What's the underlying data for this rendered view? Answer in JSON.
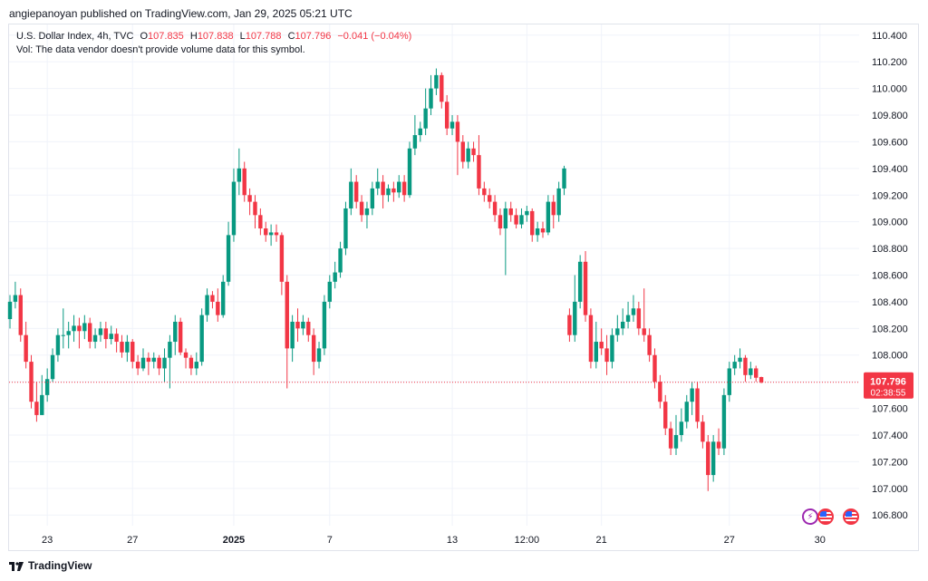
{
  "header": {
    "published_line": "angiepanoyan published on TradingView.com, Jan 29, 2025 05:21 UTC"
  },
  "legend": {
    "symbol": "U.S. Dollar Index, 4h, TVC",
    "open_label": "O",
    "open_value": "107.835",
    "high_label": "H",
    "high_value": "107.838",
    "low_label": "L",
    "low_value": "107.788",
    "close_label": "C",
    "close_value": "107.796",
    "change": "−0.041 (−0.04%)",
    "volume_note": "Vol: The data vendor doesn't provide volume data for this symbol."
  },
  "price_tag": {
    "price": "107.796",
    "countdown": "02:38:55"
  },
  "footer": {
    "brand": "TradingView"
  },
  "icons": [
    "flash-event-icon",
    "us-flag-event-icon",
    "us-flag-event-icon"
  ],
  "colors": {
    "up": "#089981",
    "down": "#f23645",
    "grid": "#f0f3fa",
    "axis_text": "#131722"
  },
  "chart_data": {
    "type": "candlestick",
    "title": "U.S. Dollar Index, 4h, TVC",
    "xlabel": "",
    "ylabel": "",
    "y_ticks": [
      "106.800",
      "107.000",
      "107.200",
      "107.400",
      "107.600",
      "107.800",
      "108.000",
      "108.200",
      "108.400",
      "108.600",
      "108.800",
      "109.000",
      "109.200",
      "109.400",
      "109.600",
      "109.800",
      "110.000",
      "110.200",
      "110.400"
    ],
    "x_ticks": [
      {
        "label": "23",
        "index": 7,
        "bold": false
      },
      {
        "label": "27",
        "index": 23,
        "bold": false
      },
      {
        "label": "2025",
        "index": 42,
        "bold": true
      },
      {
        "label": "7",
        "index": 60,
        "bold": false
      },
      {
        "label": "13",
        "index": 83,
        "bold": false
      },
      {
        "label": "12:00",
        "index": 97,
        "bold": false
      },
      {
        "label": "21",
        "index": 111,
        "bold": false
      },
      {
        "label": "27",
        "index": 135,
        "bold": false
      },
      {
        "label": "30",
        "index": 152,
        "bold": false
      }
    ],
    "ylim": [
      106.72,
      110.48
    ],
    "last_price": 107.796,
    "grid": true,
    "candles": [
      [
        108.27,
        108.4,
        108.45,
        108.2
      ],
      [
        108.4,
        108.45,
        108.55,
        108.35
      ],
      [
        108.45,
        108.15,
        108.5,
        108.1
      ],
      [
        108.15,
        107.95,
        108.25,
        107.9
      ],
      [
        107.95,
        107.65,
        108.0,
        107.6
      ],
      [
        107.65,
        107.55,
        107.8,
        107.5
      ],
      [
        107.55,
        107.7,
        107.85,
        107.55
      ],
      [
        107.7,
        107.82,
        107.9,
        107.65
      ],
      [
        107.82,
        108.0,
        108.05,
        107.8
      ],
      [
        108.0,
        108.15,
        108.2,
        107.95
      ],
      [
        108.15,
        108.15,
        108.35,
        108.05
      ],
      [
        108.15,
        108.18,
        108.25,
        108.05
      ],
      [
        108.18,
        108.22,
        108.3,
        108.1
      ],
      [
        108.22,
        108.18,
        108.28,
        108.05
      ],
      [
        108.18,
        108.24,
        108.3,
        108.12
      ],
      [
        108.24,
        108.1,
        108.28,
        108.05
      ],
      [
        108.1,
        108.15,
        108.2,
        108.05
      ],
      [
        108.15,
        108.2,
        108.25,
        108.1
      ],
      [
        108.2,
        108.12,
        108.25,
        108.05
      ],
      [
        108.12,
        108.16,
        108.22,
        108.08
      ],
      [
        108.16,
        108.1,
        108.2,
        108.02
      ],
      [
        108.1,
        108.02,
        108.15,
        107.98
      ],
      [
        108.02,
        108.1,
        108.15,
        107.95
      ],
      [
        108.1,
        107.95,
        108.12,
        107.9
      ],
      [
        107.95,
        107.9,
        108.0,
        107.85
      ],
      [
        107.9,
        107.98,
        108.05,
        107.88
      ],
      [
        107.98,
        107.95,
        108.02,
        107.85
      ],
      [
        107.95,
        107.98,
        108.02,
        107.9
      ],
      [
        107.98,
        107.9,
        108.0,
        107.85
      ],
      [
        107.9,
        107.98,
        108.05,
        107.8
      ],
      [
        107.98,
        108.1,
        108.15,
        107.75
      ],
      [
        108.1,
        108.25,
        108.3,
        108.0
      ],
      [
        108.25,
        108.02,
        108.28,
        108.0
      ],
      [
        108.02,
        107.98,
        108.05,
        107.9
      ],
      [
        107.98,
        107.9,
        108.0,
        107.85
      ],
      [
        107.9,
        107.95,
        108.02,
        107.85
      ],
      [
        107.95,
        108.3,
        108.35,
        107.92
      ],
      [
        108.3,
        108.45,
        108.5,
        108.25
      ],
      [
        108.45,
        108.4,
        108.48,
        108.35
      ],
      [
        108.4,
        108.3,
        108.5,
        108.25
      ],
      [
        108.3,
        108.55,
        108.6,
        108.28
      ],
      [
        108.55,
        108.9,
        109.0,
        108.52
      ],
      [
        108.9,
        109.3,
        109.4,
        108.85
      ],
      [
        109.3,
        109.4,
        109.55,
        109.2
      ],
      [
        109.4,
        109.2,
        109.45,
        109.15
      ],
      [
        109.2,
        109.15,
        109.25,
        109.05
      ],
      [
        109.15,
        109.05,
        109.2,
        108.95
      ],
      [
        109.05,
        108.95,
        109.1,
        108.9
      ],
      [
        108.95,
        108.9,
        109.0,
        108.85
      ],
      [
        108.9,
        108.92,
        108.98,
        108.82
      ],
      [
        108.92,
        108.9,
        108.98,
        108.85
      ],
      [
        108.9,
        108.55,
        108.92,
        108.45
      ],
      [
        108.55,
        108.05,
        108.6,
        107.75
      ],
      [
        108.05,
        108.25,
        108.3,
        107.95
      ],
      [
        108.25,
        108.2,
        108.35,
        108.1
      ],
      [
        108.2,
        108.25,
        108.3,
        108.15
      ],
      [
        108.25,
        108.15,
        108.28,
        108.1
      ],
      [
        108.15,
        107.95,
        108.2,
        107.85
      ],
      [
        107.95,
        108.05,
        108.1,
        107.9
      ],
      [
        108.05,
        108.4,
        108.45,
        108.0
      ],
      [
        108.4,
        108.55,
        108.6,
        108.35
      ],
      [
        108.55,
        108.62,
        108.7,
        108.5
      ],
      [
        108.62,
        108.8,
        108.85,
        108.58
      ],
      [
        108.8,
        109.1,
        109.15,
        108.75
      ],
      [
        109.1,
        109.3,
        109.4,
        109.05
      ],
      [
        109.3,
        109.15,
        109.35,
        109.1
      ],
      [
        109.15,
        109.05,
        109.2,
        109.0
      ],
      [
        109.05,
        109.1,
        109.15,
        108.95
      ],
      [
        109.1,
        109.25,
        109.3,
        109.05
      ],
      [
        109.25,
        109.3,
        109.4,
        109.2
      ],
      [
        109.3,
        109.2,
        109.35,
        109.1
      ],
      [
        109.2,
        109.25,
        109.28,
        109.15
      ],
      [
        109.25,
        109.22,
        109.3,
        109.15
      ],
      [
        109.22,
        109.3,
        109.35,
        109.18
      ],
      [
        109.3,
        109.2,
        109.35,
        109.15
      ],
      [
        109.2,
        109.55,
        109.6,
        109.18
      ],
      [
        109.55,
        109.65,
        109.8,
        109.5
      ],
      [
        109.65,
        109.7,
        109.75,
        109.6
      ],
      [
        109.7,
        109.85,
        110.0,
        109.65
      ],
      [
        109.85,
        110.0,
        110.1,
        109.8
      ],
      [
        110.0,
        110.1,
        110.15,
        109.95
      ],
      [
        110.1,
        109.9,
        110.12,
        109.85
      ],
      [
        109.9,
        109.7,
        109.95,
        109.65
      ],
      [
        109.7,
        109.75,
        109.8,
        109.65
      ],
      [
        109.75,
        109.6,
        109.8,
        109.35
      ],
      [
        109.6,
        109.45,
        109.65,
        109.4
      ],
      [
        109.45,
        109.55,
        109.6,
        109.4
      ],
      [
        109.55,
        109.5,
        109.6,
        109.45
      ],
      [
        109.5,
        109.25,
        109.65,
        109.2
      ],
      [
        109.25,
        109.2,
        109.3,
        109.15
      ],
      [
        109.2,
        109.15,
        109.25,
        109.1
      ],
      [
        109.15,
        109.05,
        109.2,
        109.0
      ],
      [
        109.05,
        108.95,
        109.1,
        108.9
      ],
      [
        108.95,
        109.1,
        109.15,
        108.6
      ],
      [
        109.1,
        109.05,
        109.15,
        109.0
      ],
      [
        109.05,
        108.98,
        109.1,
        108.95
      ],
      [
        108.98,
        109.05,
        109.1,
        108.95
      ],
      [
        109.05,
        109.08,
        109.12,
        109.0
      ],
      [
        109.08,
        108.9,
        109.1,
        108.85
      ],
      [
        108.9,
        108.95,
        109.0,
        108.85
      ],
      [
        108.95,
        108.92,
        109.0,
        108.88
      ],
      [
        108.92,
        109.15,
        109.2,
        108.9
      ],
      [
        109.15,
        109.05,
        109.2,
        108.95
      ],
      [
        109.05,
        109.25,
        109.3,
        109.0
      ],
      [
        109.25,
        109.4,
        109.42,
        109.2
      ],
      [
        108.3,
        108.15,
        108.35,
        108.1
      ],
      [
        108.15,
        108.4,
        108.6,
        108.1
      ],
      [
        108.4,
        108.7,
        108.75,
        108.35
      ],
      [
        108.7,
        108.3,
        108.78,
        108.25
      ],
      [
        108.3,
        107.95,
        108.35,
        107.9
      ],
      [
        107.95,
        108.1,
        108.25,
        107.9
      ],
      [
        108.1,
        108.05,
        108.2,
        108.0
      ],
      [
        108.05,
        107.95,
        108.15,
        107.85
      ],
      [
        107.95,
        108.15,
        108.2,
        107.9
      ],
      [
        108.15,
        108.2,
        108.3,
        108.1
      ],
      [
        108.2,
        108.25,
        108.35,
        108.15
      ],
      [
        108.25,
        108.3,
        108.4,
        108.2
      ],
      [
        108.3,
        108.35,
        108.45,
        108.25
      ],
      [
        108.35,
        108.2,
        108.4,
        108.15
      ],
      [
        108.2,
        108.15,
        108.5,
        108.1
      ],
      [
        108.15,
        108.0,
        108.2,
        107.95
      ],
      [
        108.0,
        107.8,
        108.05,
        107.75
      ],
      [
        107.8,
        107.65,
        107.85,
        107.6
      ],
      [
        107.65,
        107.45,
        107.7,
        107.4
      ],
      [
        107.45,
        107.3,
        107.5,
        107.25
      ],
      [
        107.3,
        107.4,
        107.55,
        107.25
      ],
      [
        107.4,
        107.5,
        107.6,
        107.35
      ],
      [
        107.5,
        107.65,
        107.7,
        107.45
      ],
      [
        107.65,
        107.75,
        107.8,
        107.55
      ],
      [
        107.75,
        107.5,
        107.8,
        107.45
      ],
      [
        107.5,
        107.35,
        107.55,
        107.3
      ],
      [
        107.35,
        107.1,
        107.4,
        106.98
      ],
      [
        107.1,
        107.35,
        107.4,
        107.05
      ],
      [
        107.35,
        107.3,
        107.45,
        107.25
      ],
      [
        107.3,
        107.7,
        107.75,
        107.25
      ],
      [
        107.7,
        107.9,
        107.95,
        107.65
      ],
      [
        107.9,
        107.95,
        108.0,
        107.85
      ],
      [
        107.95,
        107.98,
        108.05,
        107.9
      ],
      [
        107.98,
        107.85,
        108.0,
        107.8
      ],
      [
        107.85,
        107.9,
        107.95,
        107.82
      ],
      [
        107.9,
        107.83,
        107.92,
        107.8
      ],
      [
        107.835,
        107.796,
        107.838,
        107.788
      ]
    ]
  }
}
